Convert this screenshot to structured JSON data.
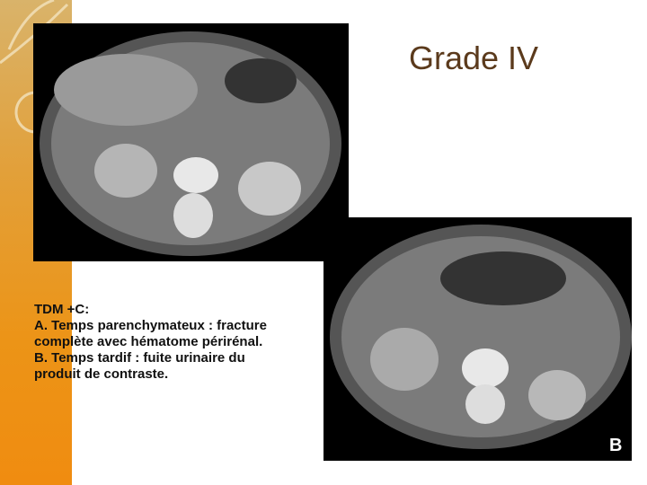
{
  "title": "Grade IV",
  "caption": [
    "TDM +C:",
    "A. Temps parenchymateux : fracture",
    "complète avec hématome périrénal.",
    "B. Temps tardif : fuite urinaire du",
    "produit de contraste."
  ],
  "image_b_label": "B"
}
